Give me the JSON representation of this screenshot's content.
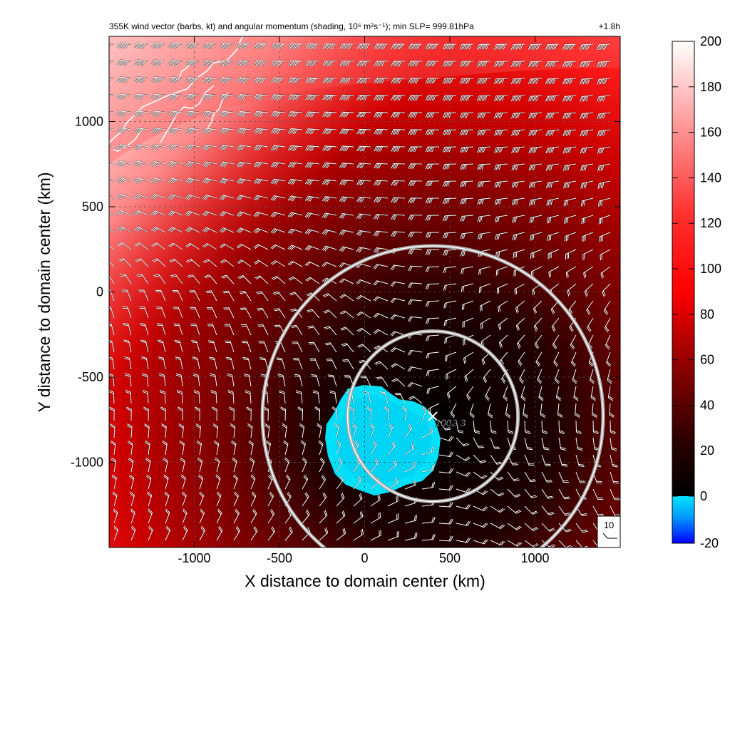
{
  "chart_data": {
    "type": "heatmap",
    "title": "355K wind vector (barbs, kt) and angular momentum (shading, 10⁶ m²s⁻¹); min SLP= 999.81hPa",
    "time_label": "+1.8h",
    "xlabel": "X distance to domain center (km)",
    "ylabel": "Y distance to domain center (km)",
    "xlim": [
      -1500,
      1500
    ],
    "ylim": [
      -1500,
      1500
    ],
    "xticks": [
      -1000,
      -500,
      0,
      500,
      1000
    ],
    "yticks": [
      1000,
      500,
      0,
      -500,
      -1000
    ],
    "tick_labels_x": [
      "-1000",
      "-500",
      "0",
      "500",
      "1000"
    ],
    "tick_labels_y": [
      "1000",
      "500",
      "0",
      "-500",
      "-1000"
    ],
    "grid": "dashed",
    "colorbar": {
      "range": [
        -20,
        200
      ],
      "ticks": [
        200,
        180,
        160,
        140,
        120,
        100,
        80,
        60,
        40,
        20,
        0,
        -20
      ],
      "tick_labels": [
        "200",
        "180",
        "160",
        "140",
        "120",
        "100",
        "80",
        "60",
        "40",
        "20",
        "0",
        "-20"
      ],
      "colors": {
        "min": "#0000ff",
        "neg": "#00e5ff",
        "zero": "#000000",
        "mid": "#ff0000",
        "max": "#ffffff"
      }
    },
    "center_marker": {
      "x": 400,
      "y": -730,
      "label": "1002.3"
    },
    "range_rings_km": [
      500,
      1000
    ],
    "negative_region_center": {
      "x": 100,
      "y": -870
    },
    "barb_reference": {
      "value": "10"
    }
  }
}
